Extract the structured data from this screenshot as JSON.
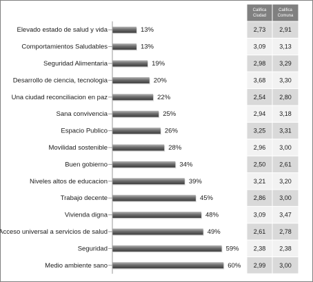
{
  "table": {
    "col1_header_line1": "Califica",
    "col1_header_line2": "Ciudad",
    "col2_header_line1": "Califica",
    "col2_header_line2": "Comuna",
    "header_color": "#808080",
    "row_fill_dark": "#d9d9d9",
    "row_fill_light": "#f2f2f2"
  },
  "chart_data": {
    "type": "bar",
    "orientation": "horizontal",
    "categories": [
      "Elevado estado de salud y vida",
      "Comportamientos Saludables",
      "Seguridad Alimentaria",
      "Desarrollo de ciencia, tecnologia",
      "Una ciudad reconciliacion en paz",
      "Sana convivencia",
      "Espacio Publico",
      "Movilidad sostenible",
      "Buen gobierno",
      "Niveles altos de educacion",
      "Trabajo decente",
      "Vivienda digna",
      "Acceso universal a servicios de salud",
      "Seguridad",
      "Medio ambiente sano"
    ],
    "values": [
      13,
      13,
      19,
      20,
      22,
      25,
      26,
      28,
      34,
      39,
      45,
      48,
      49,
      59,
      60
    ],
    "value_labels": [
      "13%",
      "13%",
      "19%",
      "20%",
      "22%",
      "25%",
      "26%",
      "28%",
      "34%",
      "39%",
      "45%",
      "48%",
      "49%",
      "59%",
      "60%"
    ],
    "califica_ciudad": [
      "2,73",
      "3,09",
      "2,98",
      "3,68",
      "2,54",
      "2,94",
      "3,25",
      "2,96",
      "2,50",
      "3,21",
      "2,86",
      "3,09",
      "2,61",
      "2,38",
      "2,99"
    ],
    "califica_comuna": [
      "2,91",
      "3,13",
      "3,29",
      "3,30",
      "2,80",
      "3,18",
      "3,31",
      "3,00",
      "2,61",
      "3,20",
      "3,00",
      "3,47",
      "2,78",
      "2,38",
      "3,00"
    ],
    "title": "",
    "xlabel": "",
    "ylabel": "",
    "xlim": [
      0,
      64
    ],
    "grid": false,
    "legend": "none",
    "bar_color": "#6e6e6e"
  }
}
